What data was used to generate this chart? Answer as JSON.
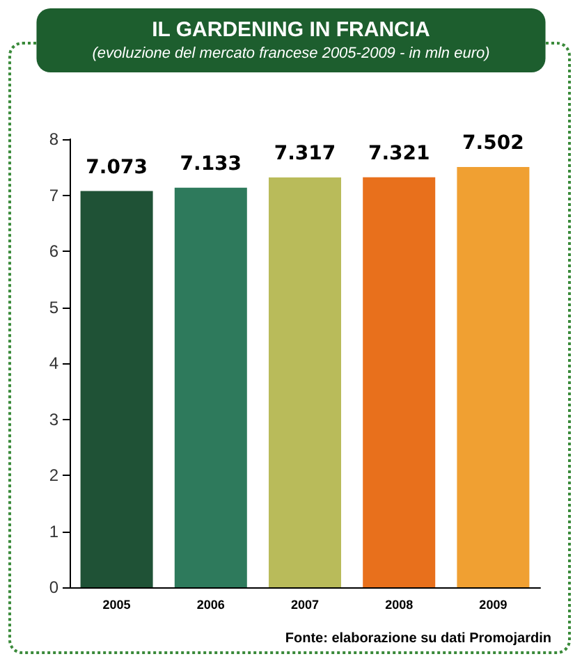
{
  "chart_data": {
    "type": "bar",
    "title": "IL GARDENING IN FRANCIA",
    "subtitle": "(evoluzione del mercato francese 2005-2009 - in mln euro)",
    "categories": [
      "2005",
      "2006",
      "2007",
      "2008",
      "2009"
    ],
    "values": [
      7.073,
      7.133,
      7.317,
      7.321,
      7.502
    ],
    "colors": [
      "#1f5236",
      "#2e7a5c",
      "#b9bb5a",
      "#e8701c",
      "#f0a032"
    ],
    "ylim": [
      0,
      8
    ],
    "yticks": [
      0,
      1,
      2,
      3,
      4,
      5,
      6,
      7,
      8
    ],
    "grid": false,
    "data_labels": true,
    "annotations": [
      "Fonte: elaborazione su dati Promojardin"
    ]
  }
}
